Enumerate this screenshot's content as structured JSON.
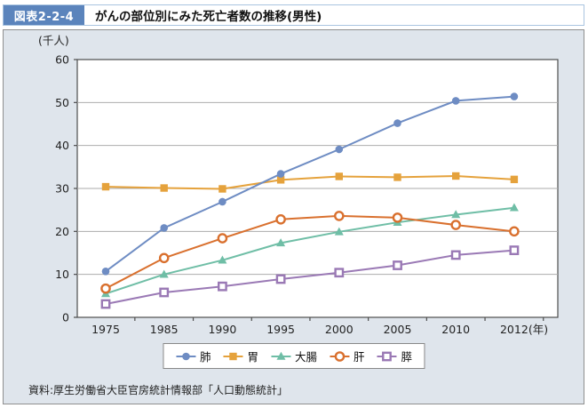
{
  "header": {
    "figure_label": "図表2-2-4",
    "title": "がんの部位別にみた死亡者数の推移(男性)"
  },
  "source": "資料:厚生労働省大臣官房統計情報部「人口動態統計」",
  "chart_data": {
    "type": "line",
    "title": "がんの部位別にみた死亡者数の推移(男性)",
    "unit_label": "(千人)",
    "x_axis_suffix": "(年)",
    "categories": [
      "1975",
      "1985",
      "1990",
      "1995",
      "2000",
      "2005",
      "2010",
      "2012"
    ],
    "ylim": [
      0,
      60
    ],
    "ytick_interval": 10,
    "grid": true,
    "legend_position": "bottom",
    "series": [
      {
        "id": "lung",
        "name": "肺",
        "marker": "circle",
        "fill": "solid",
        "color": "#6E8CC3",
        "values": [
          10.7,
          20.8,
          26.9,
          33.4,
          39.1,
          45.2,
          50.4,
          51.4
        ]
      },
      {
        "id": "stomach",
        "name": "胃",
        "marker": "square",
        "fill": "solid",
        "color": "#E5A23C",
        "values": [
          30.4,
          30.1,
          29.9,
          32.0,
          32.8,
          32.6,
          32.9,
          32.1
        ]
      },
      {
        "id": "colon",
        "name": "大腸",
        "marker": "triangle",
        "fill": "solid",
        "color": "#6FBEA6",
        "values": [
          5.5,
          10.0,
          13.3,
          17.3,
          19.9,
          22.1,
          23.9,
          25.5
        ]
      },
      {
        "id": "liver",
        "name": "肝",
        "marker": "circle",
        "fill": "open",
        "color": "#D9702E",
        "values": [
          6.7,
          13.8,
          18.4,
          22.8,
          23.6,
          23.2,
          21.5,
          20.0
        ]
      },
      {
        "id": "pancreas",
        "name": "膵",
        "marker": "square",
        "fill": "open",
        "color": "#9A79B5",
        "values": [
          3.1,
          5.8,
          7.2,
          8.9,
          10.4,
          12.1,
          14.5,
          15.6
        ]
      }
    ]
  },
  "colors": {
    "figure_label_bg": "#5B84BC",
    "panel_bg": "#DFE5EC",
    "panel_border": "#8F8F8F",
    "plot_border": "#4D4D4D",
    "gridline": "#ABABAB",
    "axis_text": "#222222"
  }
}
